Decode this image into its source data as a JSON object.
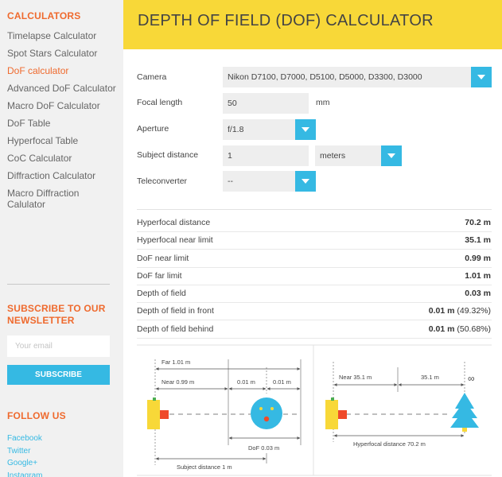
{
  "sidebar": {
    "title": "CALCULATORS",
    "items": [
      {
        "label": "Timelapse Calculator",
        "active": false
      },
      {
        "label": "Spot Stars Calculator",
        "active": false
      },
      {
        "label": "DoF calculator",
        "active": true
      },
      {
        "label": "Advanced DoF Calculator",
        "active": false
      },
      {
        "label": "Macro DoF Calculator",
        "active": false
      },
      {
        "label": "DoF Table",
        "active": false
      },
      {
        "label": "Hyperfocal Table",
        "active": false
      },
      {
        "label": "CoC Calculator",
        "active": false
      },
      {
        "label": "Diffraction Calculator",
        "active": false
      },
      {
        "label": "Macro Diffraction Calulator",
        "active": false
      }
    ],
    "newsletter_title": "SUBSCRIBE TO OUR NEWSLETTER",
    "email_placeholder": "Your email",
    "subscribe_label": "SUBSCRIBE",
    "follow_title": "FOLLOW US",
    "social": [
      "Facebook",
      "Twitter",
      "Google+",
      "Instagram"
    ]
  },
  "header": {
    "title": "DEPTH OF FIELD (DOF) CALCULATOR"
  },
  "form": {
    "camera_label": "Camera",
    "camera_value": "Nikon D7100, D7000, D5100, D5000, D3300, D3000",
    "focal_label": "Focal length",
    "focal_value": "50",
    "focal_unit": "mm",
    "aperture_label": "Aperture",
    "aperture_value": "f/1.8",
    "subject_label": "Subject distance",
    "subject_value": "1",
    "subject_unit": "meters",
    "tele_label": "Teleconverter",
    "tele_value": "--"
  },
  "results": [
    {
      "label": "Hyperfocal distance",
      "value": "70.2 m",
      "note": ""
    },
    {
      "label": "Hyperfocal near limit",
      "value": "35.1 m",
      "note": ""
    },
    {
      "label": "DoF near limit",
      "value": "0.99 m",
      "note": ""
    },
    {
      "label": "DoF far limit",
      "value": "1.01 m",
      "note": ""
    },
    {
      "label": "Depth of field",
      "value": "0.03 m",
      "note": ""
    },
    {
      "label": "Depth of field in front",
      "value": "0.01 m",
      "note": " (49.32%)"
    },
    {
      "label": "Depth of field behind",
      "value": "0.01 m",
      "note": " (50.68%)"
    }
  ],
  "diagram": {
    "far_label": "Far",
    "far_value": "1.01 m",
    "near_label": "Near",
    "near_value": "0.99 m",
    "front_value": "0.01 m",
    "behind_value": "0.01 m",
    "dof_label": "DoF",
    "dof_value": "0.03 m",
    "subject_label": "Subject distance",
    "subject_value": "1 m",
    "hf_near_label": "Near",
    "hf_near_value": "35.1 m",
    "hf_half_value": "35.1 m",
    "infinity": "∞",
    "hf_label": "Hyperfocal distance",
    "hf_value": "70.2 m"
  },
  "colors": {
    "accent": "#35b9e3",
    "header": "#f8d838",
    "orange": "#ef6a2e"
  }
}
